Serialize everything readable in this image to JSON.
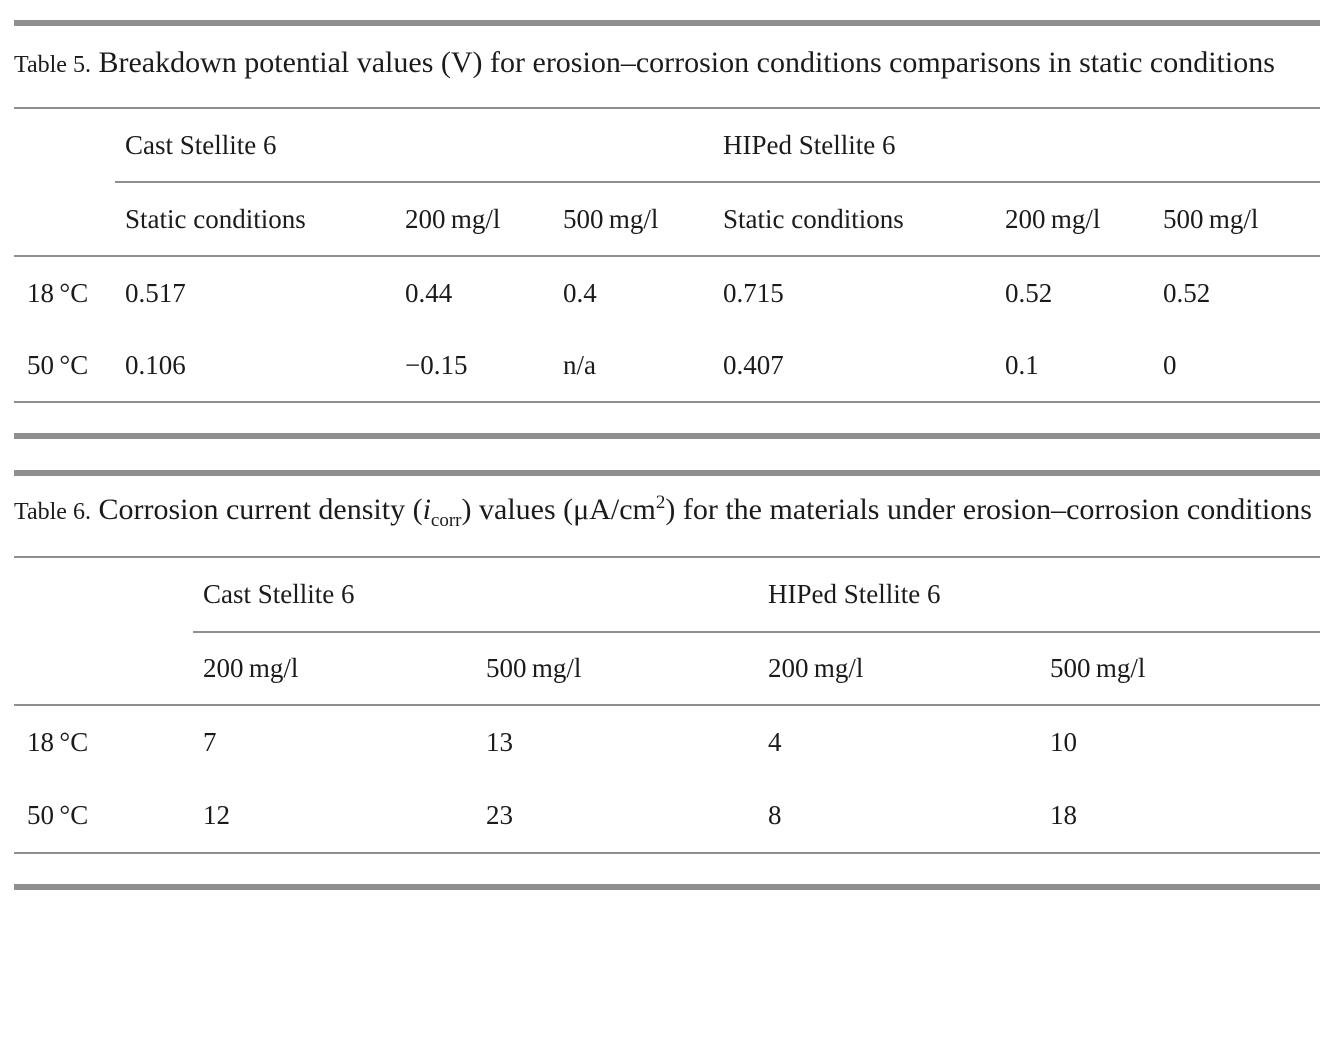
{
  "page": {
    "background_color": "#ffffff",
    "text_color": "#1b1b1b",
    "rule_color": "#8f8f8f"
  },
  "tables": [
    {
      "label": "Table 5.",
      "title": "Breakdown potential values (V) for erosion–corrosion conditions comparisons in static conditions",
      "group_headers": [
        "Cast Stellite 6",
        "HIPed Stellite 6"
      ],
      "sub_headers": [
        "Static conditions",
        "200 mg/l",
        "500 mg/l",
        "Static conditions",
        "200 mg/l",
        "500 mg/l"
      ],
      "rows": [
        {
          "label": "18 °C",
          "cells": [
            "0.517",
            "0.44",
            "0.4",
            "0.715",
            "0.52",
            "0.52"
          ]
        },
        {
          "label": "50 °C",
          "cells": [
            "0.106",
            "−0.15",
            "n/a",
            "0.407",
            "0.1",
            "0"
          ]
        }
      ]
    },
    {
      "label": "Table 6.",
      "title_parts": {
        "p1": "Corrosion current density (",
        "var": "i",
        "var_sub": "corr",
        "p2": ") values (μA/cm",
        "sup": "2",
        "p3": ") for the materials under erosion–corrosion conditions"
      },
      "group_headers": [
        "Cast Stellite 6",
        "HIPed Stellite 6"
      ],
      "sub_headers": [
        "200 mg/l",
        "500 mg/l",
        "200 mg/l",
        "500 mg/l"
      ],
      "rows": [
        {
          "label": "18 °C",
          "cells": [
            "7",
            "13",
            "4",
            "10"
          ]
        },
        {
          "label": "50 °C",
          "cells": [
            "12",
            "23",
            "8",
            "18"
          ]
        }
      ]
    }
  ]
}
